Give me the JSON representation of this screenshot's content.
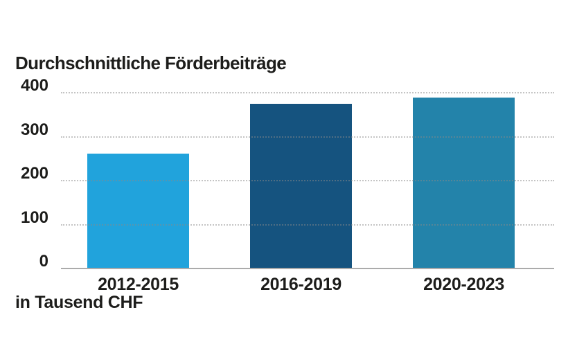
{
  "page": {
    "background_color": "#ffffff",
    "text_color": "#1d1d1b"
  },
  "chart_data": {
    "type": "bar",
    "title": "Durchschnittliche Förderbeiträge",
    "unit_note": "in Tausend CHF",
    "categories": [
      "2012-2015",
      "2016-2019",
      "2020-2023"
    ],
    "values": [
      260,
      374,
      388
    ],
    "bar_colors": [
      "#21a3dc",
      "#15537f",
      "#2383aa"
    ],
    "ylim": [
      0,
      400
    ],
    "yticks": [
      0,
      100,
      200,
      300,
      400
    ],
    "xlabel": "",
    "ylabel": "",
    "legend": "none",
    "grid": "horizontal-dotted",
    "gridline_color": "#8a8a8a",
    "baseline_color": "#ababab"
  }
}
